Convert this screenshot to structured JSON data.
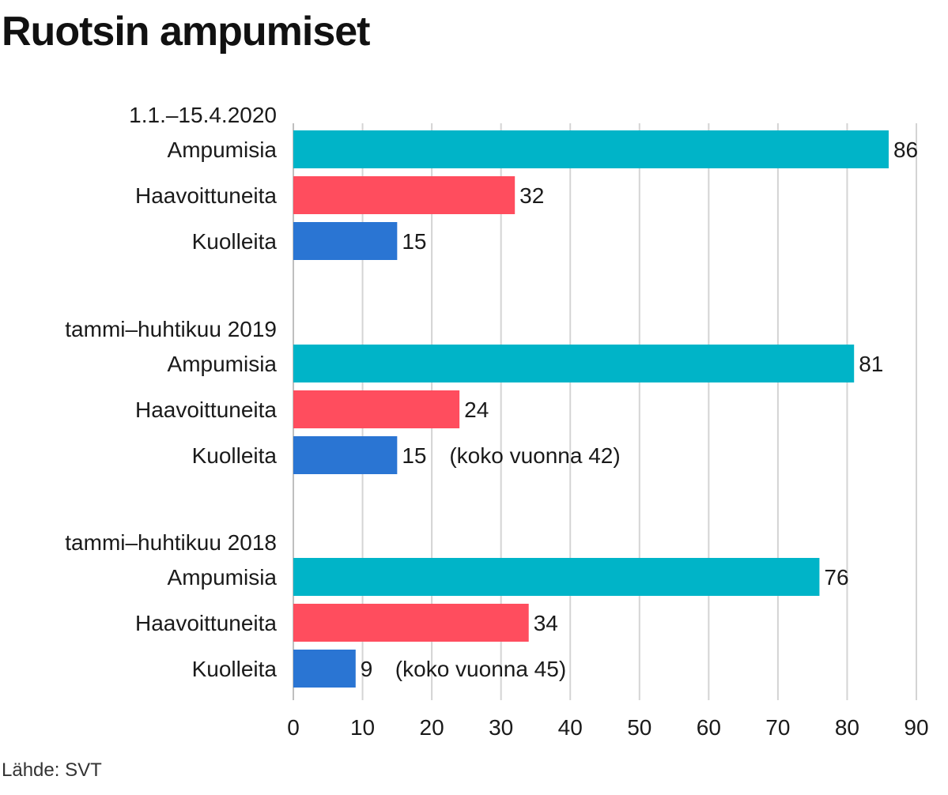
{
  "title": "Ruotsin ampumiset",
  "source": "Lähde: SVT",
  "chart_data": {
    "type": "bar",
    "orientation": "horizontal",
    "title": "Ruotsin ampumiset",
    "xlabel": "",
    "ylabel": "",
    "xlim": [
      0,
      90
    ],
    "ticks": [
      0,
      10,
      20,
      30,
      40,
      50,
      60,
      70,
      80,
      90
    ],
    "grid": true,
    "colors": {
      "Ampumisia": "#00b4c8",
      "Haavoittuneita": "#ff4d5e",
      "Kuolleita": "#2a75d3"
    },
    "groups": [
      {
        "label": "1.1.–15.4.2020",
        "bars": [
          {
            "category": "Ampumisia",
            "value": 86,
            "note": ""
          },
          {
            "category": "Haavoittuneita",
            "value": 32,
            "note": ""
          },
          {
            "category": "Kuolleita",
            "value": 15,
            "note": ""
          }
        ]
      },
      {
        "label": "tammi–huhtikuu 2019",
        "bars": [
          {
            "category": "Ampumisia",
            "value": 81,
            "note": ""
          },
          {
            "category": "Haavoittuneita",
            "value": 24,
            "note": ""
          },
          {
            "category": "Kuolleita",
            "value": 15,
            "note": "(koko vuonna 42)"
          }
        ]
      },
      {
        "label": "tammi–huhtikuu 2018",
        "bars": [
          {
            "category": "Ampumisia",
            "value": 76,
            "note": ""
          },
          {
            "category": "Haavoittuneita",
            "value": 34,
            "note": ""
          },
          {
            "category": "Kuolleita",
            "value": 9,
            "note": "(koko vuonna 45)"
          }
        ]
      }
    ]
  }
}
